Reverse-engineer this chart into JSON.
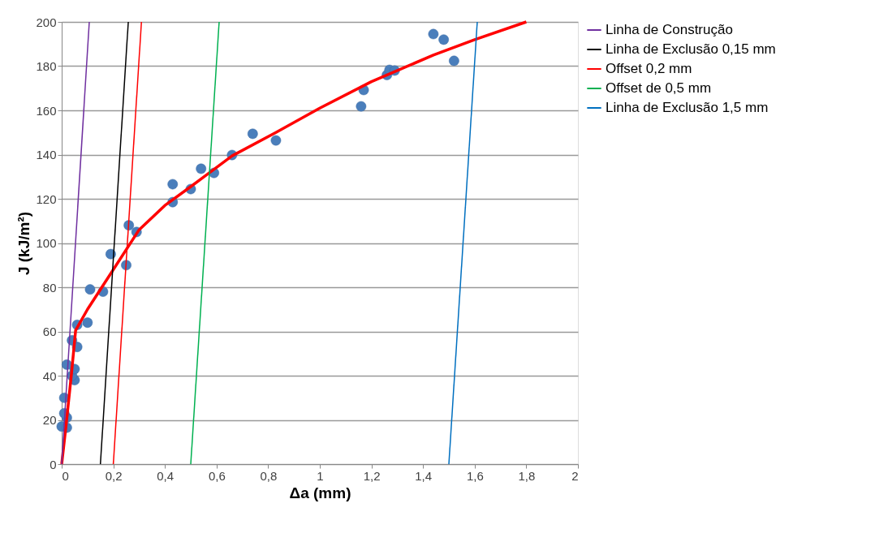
{
  "chart_data": {
    "type": "scatter",
    "xlabel": "Δa (mm)",
    "ylabel": "J (kJ/m²)",
    "xlim": [
      0,
      2
    ],
    "ylim": [
      0,
      200
    ],
    "xticks": [
      0,
      {
        "value": 0.2,
        "label": "0,2"
      },
      {
        "value": 0.4,
        "label": "0,4"
      },
      {
        "value": 0.6,
        "label": "0,6"
      },
      {
        "value": 0.8,
        "label": "0,8"
      },
      1,
      {
        "value": 1.2,
        "label": "1,2"
      },
      {
        "value": 1.4,
        "label": "1,4"
      },
      {
        "value": 1.6,
        "label": "1,6"
      },
      {
        "value": 1.8,
        "label": "1,8"
      },
      2
    ],
    "yticks": [
      0,
      20,
      40,
      60,
      80,
      100,
      120,
      140,
      160,
      180,
      200
    ],
    "grid": "y",
    "legend": "right",
    "series": [
      {
        "marker": "circle",
        "color": "#4a7ebb",
        "x": [
          0,
          0.02,
          0.02,
          0.01,
          0.01,
          0.05,
          0.04,
          0.05,
          0.02,
          0.06,
          0.04,
          0.06,
          0.1,
          0.11,
          0.16,
          0.19,
          0.25,
          0.26,
          0.29,
          0.43,
          0.43,
          0.5,
          0.54,
          0.59,
          0.66,
          0.74,
          0.83,
          1.16,
          1.17,
          1.26,
          1.27,
          1.29,
          1.44,
          1.48,
          1.52
        ],
        "values": [
          17,
          16.5,
          21,
          23,
          30,
          38,
          40,
          43,
          45,
          53,
          56,
          63,
          64,
          79,
          78,
          95,
          90,
          108,
          105,
          118.5,
          126.6,
          124.4,
          133.6,
          131.7,
          139.8,
          149.4,
          146.4,
          161.8,
          169.2,
          176,
          178.3,
          178,
          194.5,
          192,
          182.4
        ]
      },
      {
        "type": "line",
        "color": "#ff0000",
        "x": [
          0,
          0.016,
          0.038,
          0.054,
          0.1,
          0.15,
          0.2,
          0.3,
          0.4,
          0.5,
          0.66,
          0.83,
          1.0,
          1.2,
          1.44,
          1.6,
          1.8
        ],
        "values": [
          0,
          16.5,
          41,
          60.5,
          70,
          79,
          88,
          106,
          117,
          125.5,
          139.4,
          150,
          161,
          173,
          185,
          192,
          200
        ]
      },
      {
        "type": "line",
        "name": "Linha de Construção",
        "color": "#7030a0",
        "x": [
          0,
          0.107
        ],
        "values": [
          0,
          200
        ]
      },
      {
        "type": "line",
        "name": "Linha de Exclusão 0,15 mm",
        "color": "#000000",
        "x": [
          0.15,
          0.258
        ],
        "values": [
          0,
          200
        ]
      },
      {
        "type": "line",
        "name": "Offset 0,2 mm",
        "color": "#ff0000",
        "x": [
          0.2,
          0.309
        ],
        "values": [
          0,
          200
        ]
      },
      {
        "type": "line",
        "name": "Offset de 0,5 mm",
        "color": "#00b050",
        "x": [
          0.5,
          0.61
        ],
        "values": [
          0,
          200
        ]
      },
      {
        "type": "line",
        "name": "Linha de Exclusão 1,5 mm",
        "color": "#0070c0",
        "x": [
          1.5,
          1.61
        ],
        "values": [
          0,
          200
        ]
      }
    ]
  }
}
